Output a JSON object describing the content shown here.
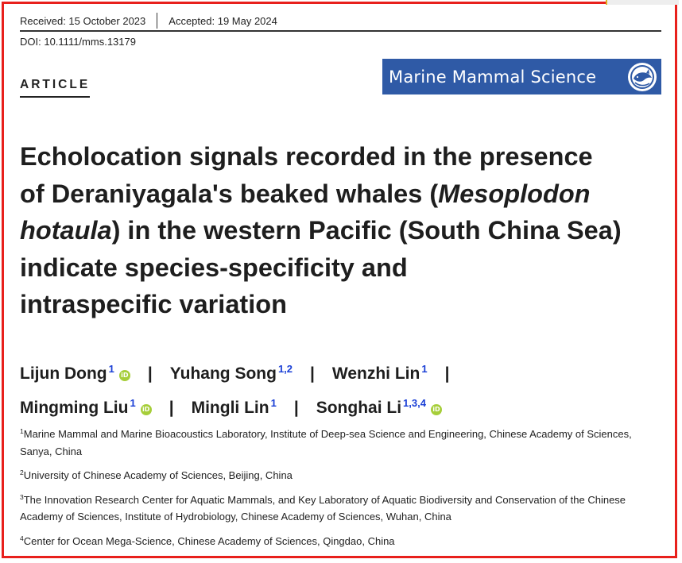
{
  "header": {
    "received": "Received: 15 October 2023",
    "accepted": "Accepted: 19 May 2024",
    "doi": "DOI: 10.1111/mms.13179"
  },
  "article_type": "ARTICLE",
  "journal": {
    "name": "Marine Mammal Science",
    "banner_color": "#2f5aa6"
  },
  "title": {
    "line1": "Echolocation signals recorded in the presence",
    "line2_pre": "of Deraniyagala's beaked whales (",
    "line2_species": "Mesoplodon",
    "line3_species": "hotaula",
    "line3_post": ") in the western Pacific (South China Sea)",
    "line4": "indicate species-specificity and",
    "line5": "intraspecific variation"
  },
  "authors": [
    {
      "name": "Lijun Dong",
      "aff": "1",
      "orcid": true
    },
    {
      "name": "Yuhang Song",
      "aff": "1,2",
      "orcid": false
    },
    {
      "name": "Wenzhi Lin",
      "aff": "1",
      "orcid": false
    },
    {
      "name": "Mingming Liu",
      "aff": "1",
      "orcid": true
    },
    {
      "name": "Mingli Lin",
      "aff": "1",
      "orcid": false
    },
    {
      "name": "Songhai Li",
      "aff": "1,3,4",
      "orcid": true
    }
  ],
  "separator": "|",
  "orcid_label": "iD",
  "affiliations": [
    {
      "num": "1",
      "text": "Marine Mammal and Marine Bioacoustics Laboratory, Institute of Deep-sea Science and Engineering, Chinese Academy of Sciences, Sanya, China"
    },
    {
      "num": "2",
      "text": "University of Chinese Academy of Sciences, Beijing, China"
    },
    {
      "num": "3",
      "text": "The Innovation Research Center for Aquatic Mammals, and Key Laboratory of Aquatic Biodiversity and Conservation of the Chinese Academy of Sciences, Institute of Hydrobiology, Chinese Academy of Sciences, Wuhan, China"
    },
    {
      "num": "4",
      "text": "Center for Ocean Mega-Science, Chinese Academy of Sciences, Qingdao, China"
    }
  ],
  "colors": {
    "frame": "#e8201c",
    "affiliation_superscript": "#1a3fd6",
    "orcid": "#a6ce39"
  }
}
